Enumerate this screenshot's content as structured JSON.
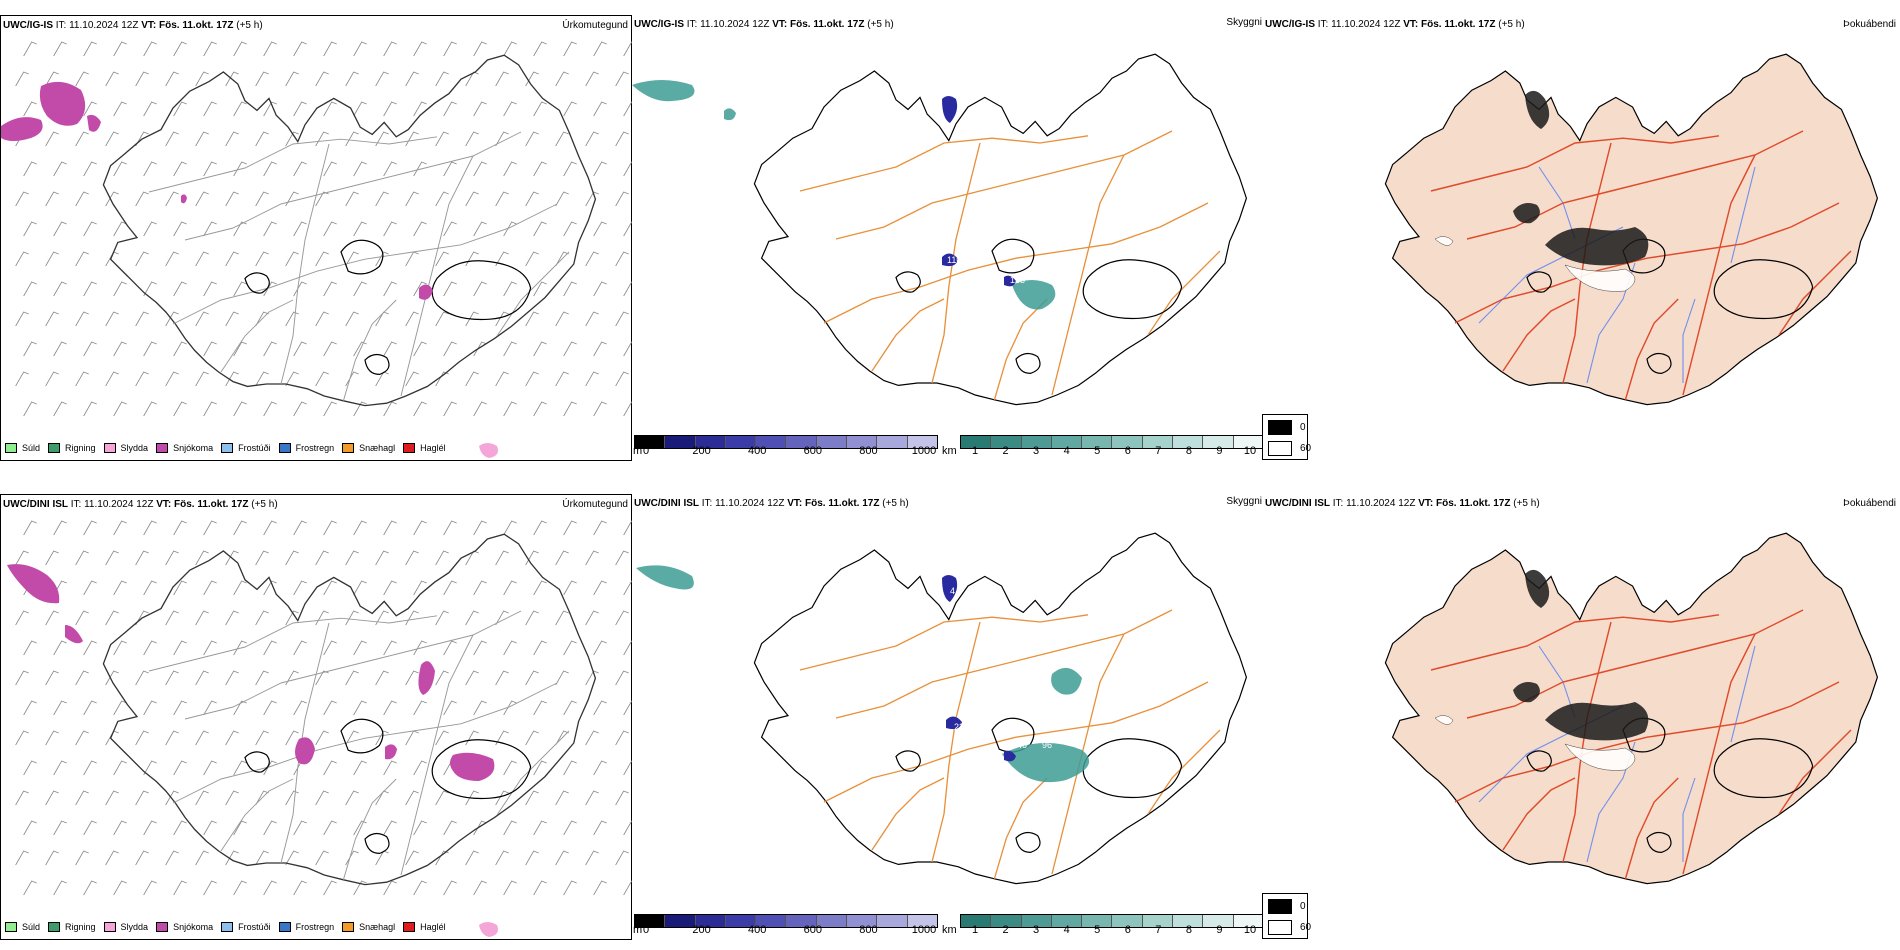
{
  "rows": [
    {
      "model": "UWC/IG-IS",
      "header_rest": " IT: 11.10.2024 12Z ",
      "vt_label": "VT:",
      "vt_value": " Fös. 11.okt. 17Z",
      "lead": " (+5 h)",
      "dots": [
        {
          "text": "110"
        },
        {
          "text": "16"
        },
        {
          "text": "135"
        },
        {
          "text": "9"
        }
      ]
    },
    {
      "model": "UWC/DINI ISL",
      "header_rest": " IT: 11.10.2024 12Z ",
      "vt_label": "VT:",
      "vt_value": " Fös. 11.okt. 17Z",
      "lead": " (+5 h)",
      "dots": [
        {
          "text": "225"
        },
        {
          "text": "146"
        },
        {
          "text": "96"
        },
        {
          "text": "50"
        },
        {
          "text": "4"
        }
      ]
    }
  ],
  "panel_titles": {
    "ptype": "Úrkomutegund",
    "visibility": "Skyggni",
    "fog": "Þokuábendi"
  },
  "ptype_legend": [
    {
      "label": "Súld",
      "color": "#90ee90"
    },
    {
      "label": "Rigning",
      "color": "#3c9c6c"
    },
    {
      "label": "Slydda",
      "color": "#f4a6d8"
    },
    {
      "label": "Snjókoma",
      "color": "#c24aa8"
    },
    {
      "label": "Frostúði",
      "color": "#8ec0ee"
    },
    {
      "label": "Frostregn",
      "color": "#3878c8"
    },
    {
      "label": "Snæhagl",
      "color": "#f29a2a"
    },
    {
      "label": "Haglél",
      "color": "#e01c1c"
    }
  ],
  "cloud_base_bar": {
    "unit": "m",
    "ticks": [
      "0",
      "200",
      "400",
      "600",
      "800",
      "1000"
    ],
    "colors": [
      "#000000",
      "#1a1a78",
      "#2c2c96",
      "#3c3ca8",
      "#5050b4",
      "#6464bc",
      "#7c7cc8",
      "#9090d2",
      "#a8a8dc",
      "#c4c4e8"
    ]
  },
  "visibility_bar": {
    "unit": "km",
    "ticks": [
      "1",
      "2",
      "3",
      "4",
      "5",
      "6",
      "7",
      "8",
      "9",
      "10"
    ],
    "colors": [
      "#2a7a74",
      "#3c8a84",
      "#4e9a94",
      "#62a8a2",
      "#78b6b0",
      "#8ec4be",
      "#a6d2cc",
      "#bedfdb",
      "#d6ebe8",
      "#eef7f5"
    ]
  },
  "fog_legend": {
    "items": [
      {
        "label": "0",
        "color": "#000000"
      },
      {
        "label": "60",
        "color": "#ffffff"
      }
    ]
  },
  "colors": {
    "snow": "#c24aa8",
    "sleet": "#f4a6d8",
    "road": "#e8903a",
    "fog_land": "#f5dccb",
    "fog_road": "#e04a2a",
    "river": "#6f8ff0",
    "teal": "#3e9c95",
    "dots": "#2a2aa0"
  }
}
